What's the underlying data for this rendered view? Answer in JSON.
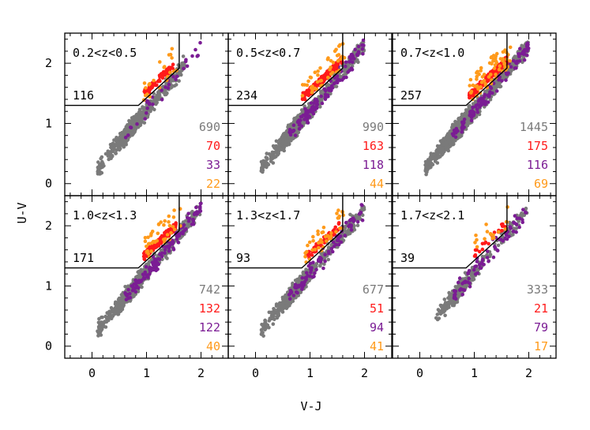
{
  "chart_data": {
    "type": "scatter",
    "xlabel": "V-J",
    "ylabel": "U-V",
    "xlim": [
      -0.5,
      2.5
    ],
    "ylim": [
      -0.2,
      2.5
    ],
    "xticks": [
      "0",
      "1",
      "2"
    ],
    "yticks": [
      "0",
      "1",
      "2"
    ],
    "selection_boundary": [
      [
        -0.5,
        1.3
      ],
      [
        0.85,
        1.3
      ],
      [
        1.6,
        1.92
      ],
      [
        1.6,
        2.5
      ]
    ],
    "colors": {
      "all": "#7a7a7a",
      "quiescent_red": "#ff1a1a",
      "purple": "#7b1c94",
      "orange": "#ff9a1a",
      "line": "#000000"
    },
    "panels": [
      {
        "label": "0.2<z<0.5",
        "box_count": "116",
        "counts": [
          "690",
          "70",
          "33",
          "22"
        ],
        "n_cloud": 690,
        "n_red": 70,
        "n_purple": 33,
        "n_orange": 22,
        "cloud_x_range": [
          0.1,
          1.7
        ],
        "red_x_range": [
          0.95,
          1.5
        ]
      },
      {
        "label": "0.5<z<0.7",
        "box_count": "234",
        "counts": [
          "990",
          "163",
          "118",
          "44"
        ],
        "n_cloud": 990,
        "n_red": 163,
        "n_purple": 118,
        "n_orange": 44,
        "cloud_x_range": [
          0.1,
          2.0
        ],
        "red_x_range": [
          0.85,
          1.6
        ]
      },
      {
        "label": "0.7<z<1.0",
        "box_count": "257",
        "counts": [
          "1445",
          "175",
          "116",
          "69"
        ],
        "n_cloud": 1445,
        "n_red": 175,
        "n_purple": 116,
        "n_orange": 69,
        "cloud_x_range": [
          0.1,
          2.0
        ],
        "red_x_range": [
          0.9,
          1.6
        ]
      },
      {
        "label": "1.0<z<1.3",
        "box_count": "171",
        "counts": [
          "742",
          "132",
          "122",
          "40"
        ],
        "n_cloud": 742,
        "n_red": 132,
        "n_purple": 122,
        "n_orange": 40,
        "cloud_x_range": [
          0.1,
          2.0
        ],
        "red_x_range": [
          0.95,
          1.55
        ]
      },
      {
        "label": "1.3<z<1.7",
        "box_count": "93",
        "counts": [
          "677",
          "51",
          "94",
          "41"
        ],
        "n_cloud": 677,
        "n_red": 51,
        "n_purple": 94,
        "n_orange": 41,
        "cloud_x_range": [
          0.1,
          2.0
        ],
        "red_x_range": [
          0.9,
          1.55
        ]
      },
      {
        "label": "1.7<z<2.1",
        "box_count": "39",
        "counts": [
          "333",
          "21",
          "79",
          "17"
        ],
        "n_cloud": 333,
        "n_red": 21,
        "n_purple": 79,
        "n_orange": 17,
        "cloud_x_range": [
          0.3,
          2.0
        ],
        "red_x_range": [
          1.0,
          1.6
        ]
      }
    ]
  }
}
